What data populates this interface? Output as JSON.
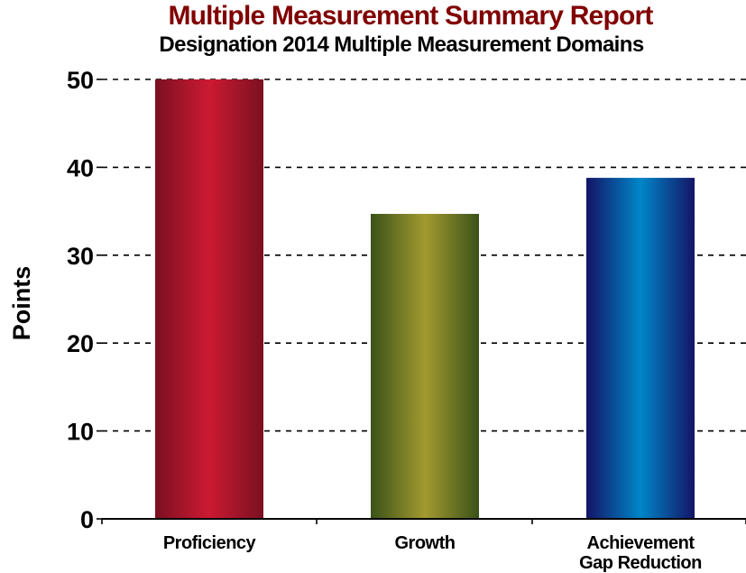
{
  "chart_data": {
    "type": "bar",
    "title": "Multiple Measurement Summary Report",
    "subtitle": "Designation 2014 Multiple Measurement Domains",
    "ylabel": "Points",
    "xlabel": "",
    "categories": [
      [
        "Proficiency"
      ],
      [
        "Growth"
      ],
      [
        "Achievement",
        "Gap Reduction"
      ]
    ],
    "values": [
      50,
      34.7,
      38.8
    ],
    "ylim": [
      0,
      50
    ],
    "yticks": [
      "0",
      "10",
      "20",
      "30",
      "40",
      "50"
    ],
    "grid": "horizontal dashed",
    "legend": "none"
  },
  "colors": {
    "title": "#800000",
    "bars": [
      [
        "#7a1020",
        "#cc1a32",
        "#7a1020"
      ],
      [
        "#3a5218",
        "#a39a30",
        "#3a5218"
      ],
      [
        "#141466",
        "#0086c8",
        "#141466"
      ]
    ]
  }
}
